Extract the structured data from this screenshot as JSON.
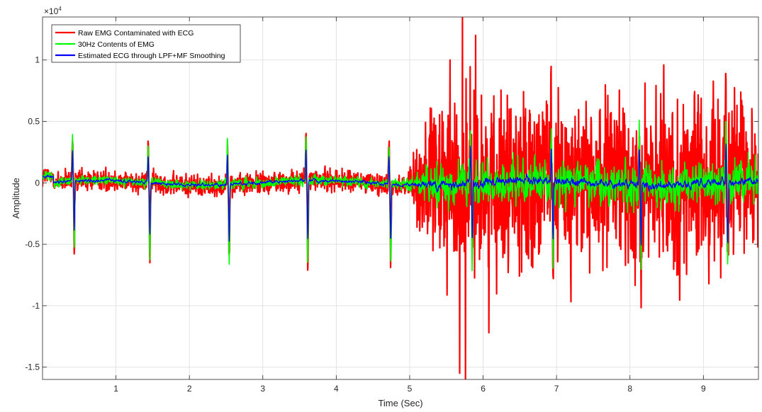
{
  "chart_data": {
    "type": "line",
    "title": "",
    "xlabel": "Time (Sec)",
    "ylabel": "Amplitude",
    "y_exponent_label": {
      "base": "×10",
      "exponent": "4"
    },
    "xlim": [
      0,
      9.75
    ],
    "ylim": [
      -1.6,
      1.35
    ],
    "x_ticks": [
      1,
      2,
      3,
      4,
      5,
      6,
      7,
      8,
      9
    ],
    "y_ticks": [
      -1.5,
      -1,
      -0.5,
      0,
      0.5,
      1
    ],
    "y_tick_labels": [
      "-1.5",
      "-1",
      "-0.5",
      "0",
      "0.5",
      "1"
    ],
    "grid": true,
    "legend_position": "top-left",
    "duration_sec": 9.75,
    "noise_onset_sec": 5.1,
    "heartbeats": [
      {
        "t": 0.42,
        "peak": 0.35,
        "trough": -0.56
      },
      {
        "t": 1.45,
        "peak": 0.32,
        "trough": -0.61
      },
      {
        "t": 2.53,
        "peak": 0.37,
        "trough": -0.66
      },
      {
        "t": 3.6,
        "peak": 0.36,
        "trough": -0.68
      },
      {
        "t": 4.73,
        "peak": 0.33,
        "trough": -0.65
      },
      {
        "t": 5.84,
        "peak": 0.42,
        "trough": -0.7
      },
      {
        "t": 6.94,
        "peak": 0.4,
        "trough": -0.68
      },
      {
        "t": 8.14,
        "peak": 0.45,
        "trough": -0.72
      },
      {
        "t": 9.32,
        "peak": 0.46,
        "trough": -0.74
      }
    ],
    "series": [
      {
        "name": "Raw EMG Contaminated with ECG",
        "color": "#ff0000",
        "quiet_amplitude": 0.08,
        "noisy_amplitude": 0.6,
        "extremes": {
          "max": 1.35,
          "min": -1.6
        }
      },
      {
        "name": "30Hz Contents of EMG",
        "color": "#00ff00",
        "quiet_amplitude": 0.05,
        "noisy_amplitude": 0.22
      },
      {
        "name": "Estimated ECG through LPF+MF Smoothing",
        "color": "#0000ff",
        "quiet_amplitude": 0.03,
        "noisy_amplitude": 0.08
      }
    ]
  }
}
